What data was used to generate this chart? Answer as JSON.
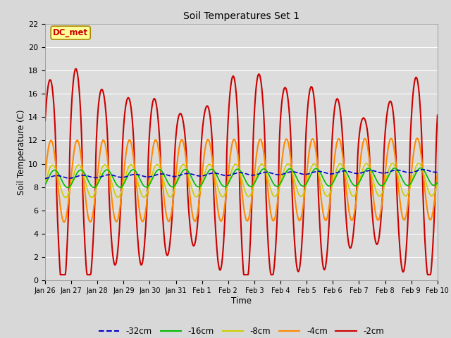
{
  "title": "Soil Temperatures Set 1",
  "xlabel": "Time",
  "ylabel": "Soil Temperature (C)",
  "ylim": [
    0,
    22
  ],
  "yticks": [
    0,
    2,
    4,
    6,
    8,
    10,
    12,
    14,
    16,
    18,
    20,
    22
  ],
  "x_tick_labels": [
    "Jan 26",
    "Jan 27",
    "Jan 28",
    "Jan 29",
    "Jan 30",
    "Jan 31",
    "Feb 1",
    "Feb 2",
    "Feb 3",
    "Feb 4",
    "Feb 5",
    "Feb 6",
    "Feb 7",
    "Feb 8",
    "Feb 9",
    "Feb 10"
  ],
  "bg_color": "#e8e8e8",
  "plot_bg": "#dcdcdc",
  "legend_items": [
    "-32cm",
    "-16cm",
    "-8cm",
    "-4cm",
    "-2cm"
  ],
  "legend_colors": [
    "#0000cc",
    "#00bb00",
    "#cccc00",
    "#ff8800",
    "#cc0000"
  ],
  "annotation_text": "DC_met",
  "annotation_color": "#cc0000",
  "annotation_bg": "#ffff99",
  "annotation_border": "#aa8800"
}
